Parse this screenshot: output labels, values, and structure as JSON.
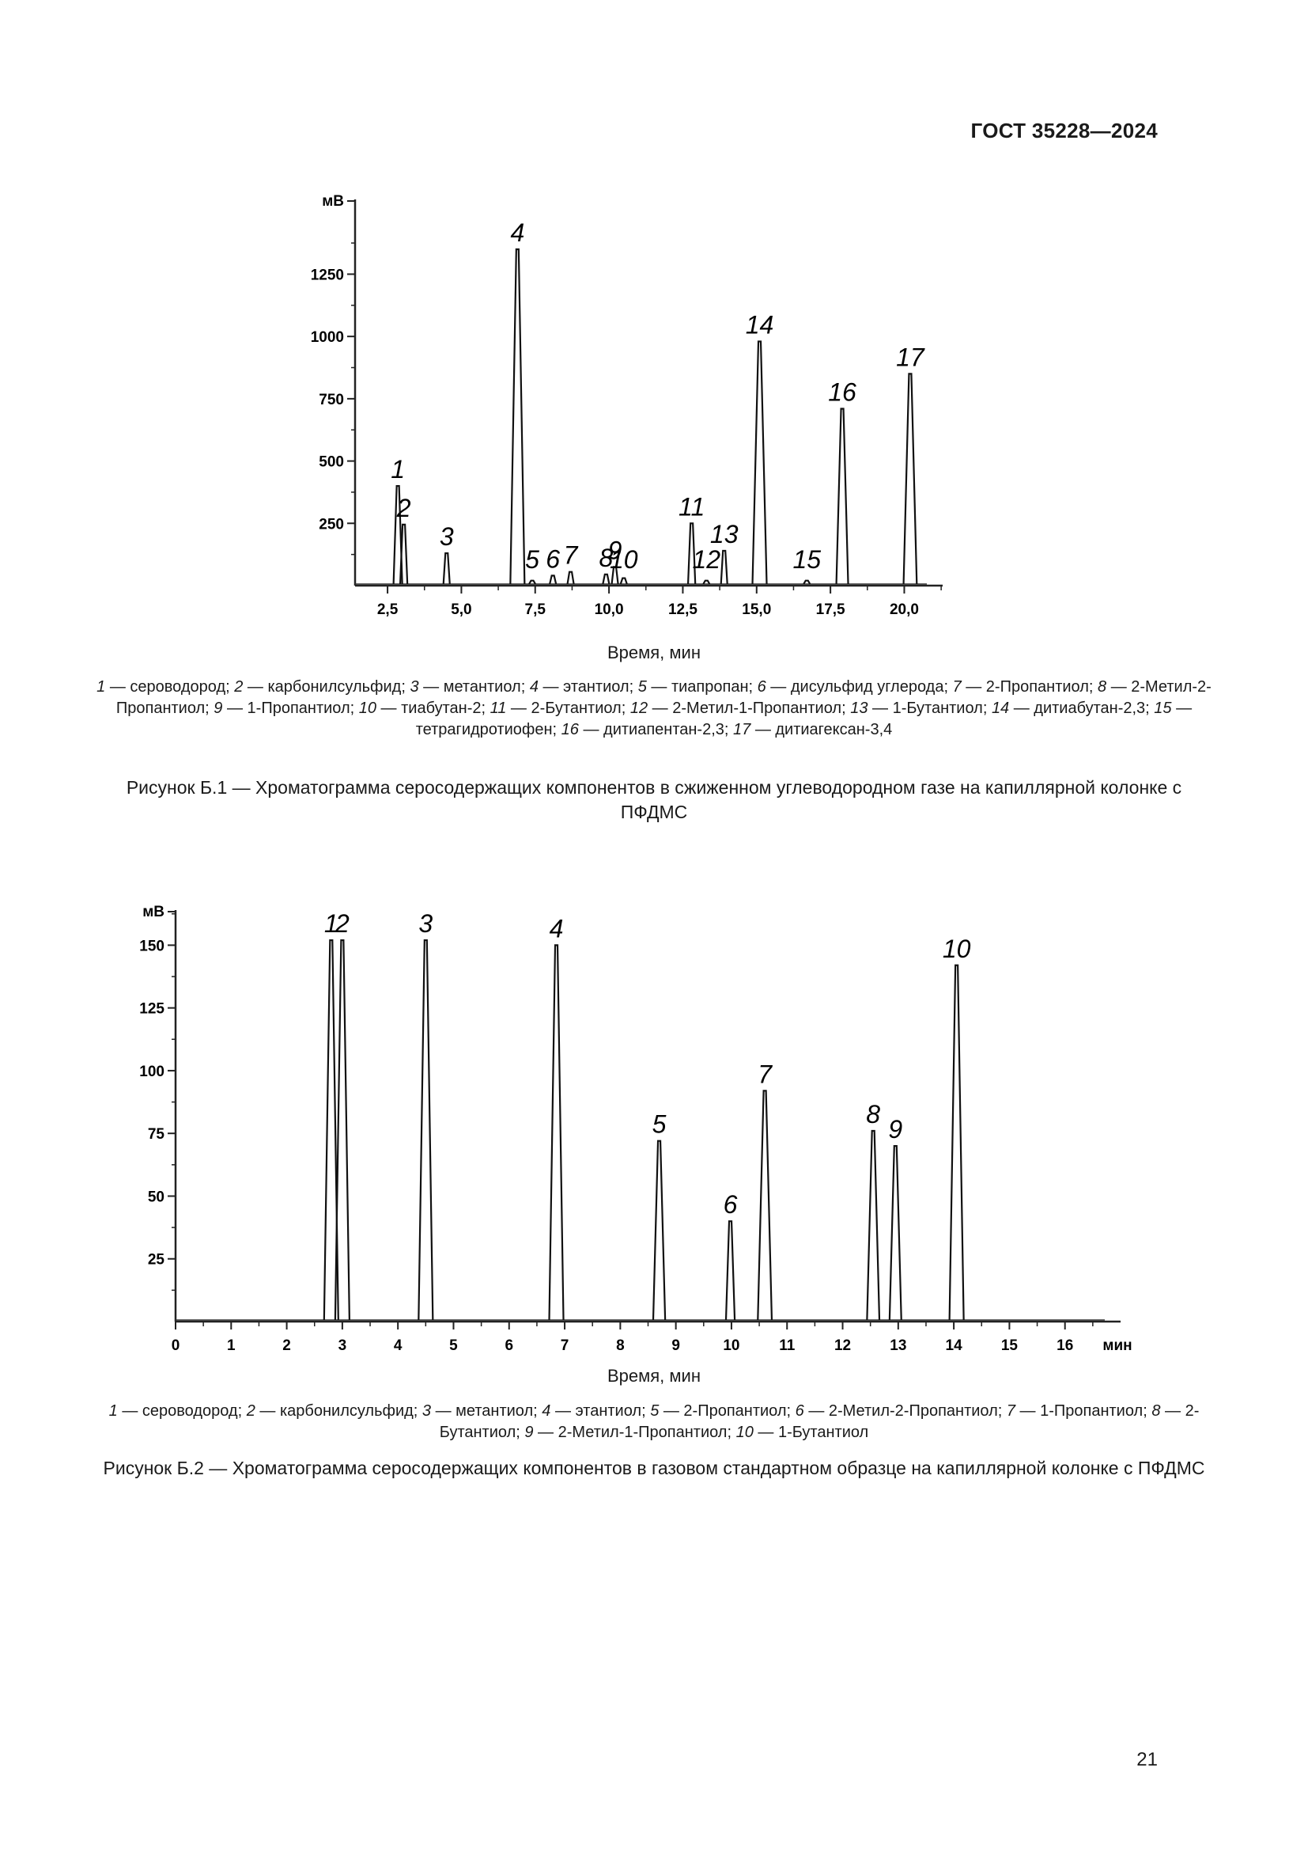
{
  "header": "ГОСТ 35228—2024",
  "page_number": "21",
  "figure1": {
    "xlabel": "Время, мин",
    "legend": [
      {
        "n": "1",
        "t": " — сероводород; "
      },
      {
        "n": "2",
        "t": " — карбонилсульфид; "
      },
      {
        "n": "3",
        "t": " — метантиол; "
      },
      {
        "n": "4",
        "t": " — этантиол; "
      },
      {
        "n": "5",
        "t": " — тиапропан; "
      },
      {
        "n": "6",
        "t": " — дисульфид углерода; "
      },
      {
        "n": "7",
        "t": " — 2-Пропантиол; "
      },
      {
        "n": "8",
        "t": " — 2-Метил-2-Пропантиол; "
      },
      {
        "n": "9",
        "t": " — 1-Пропантиол; "
      },
      {
        "n": "10",
        "t": " — тиабутан-2; "
      },
      {
        "n": "11",
        "t": " — 2-Бутантиол; "
      },
      {
        "n": "12",
        "t": " — 2-Метил-1-Пропантиол; "
      },
      {
        "n": "13",
        "t": " — 1-Бутантиол; "
      },
      {
        "n": "14",
        "t": " — дитиабутан-2,3; "
      },
      {
        "n": "15",
        "t": " — тетрагидротиофен; "
      },
      {
        "n": "16",
        "t": " — дитиапентан-2,3; "
      },
      {
        "n": "17",
        "t": " — дитиагексан-3,4"
      }
    ],
    "caption": "Рисунок Б.1 — Хроматограмма серосодержащих компонентов в сжиженном углеводородном газе на капиллярной колонке с ПФДМС"
  },
  "figure2": {
    "xlabel": "Время, мин",
    "legend": [
      {
        "n": "1",
        "t": " — сероводород; "
      },
      {
        "n": "2",
        "t": " — карбонилсульфид; "
      },
      {
        "n": "3",
        "t": " — метантиол; "
      },
      {
        "n": "4",
        "t": " — этантиол; "
      },
      {
        "n": "5",
        "t": " — 2-Пропантиол; "
      },
      {
        "n": "6",
        "t": " — 2-Метил-2-Пропантиол; "
      },
      {
        "n": "7",
        "t": " — 1-Пропантиол; "
      },
      {
        "n": "8",
        "t": " — 2-Бутантиол; "
      },
      {
        "n": "9",
        "t": " — 2-Метил-1-Пропантиол; "
      },
      {
        "n": "10",
        "t": " — 1-Бутантиол"
      }
    ],
    "caption": "Рисунок Б.2 — Хроматограмма серосодержащих компонентов в газовом стандартном образце на капиллярной колонке с ПФДМС"
  },
  "chart_data": [
    {
      "type": "line",
      "ylabel": "мВ",
      "xlabel": "Время, мин",
      "xlim": [
        1.4,
        21.3
      ],
      "ylim": [
        0,
        1550
      ],
      "yticks": [
        250,
        500,
        750,
        1000,
        1250
      ],
      "ytick_labels": [
        "250",
        "500",
        "750",
        "1000",
        "1250"
      ],
      "xticks": [
        2.5,
        5.0,
        7.5,
        10.0,
        12.5,
        15.0,
        17.5,
        20.0
      ],
      "xtick_labels": [
        "2,5",
        "5,0",
        "7,5",
        "10,0",
        "12,5",
        "15,0",
        "17,5",
        "20,0"
      ],
      "peaks": [
        {
          "label": "1",
          "x": 2.85,
          "y": 400
        },
        {
          "label": "2",
          "x": 3.05,
          "y": 245
        },
        {
          "label": "3",
          "x": 4.5,
          "y": 130
        },
        {
          "label": "4",
          "x": 6.9,
          "y": 1350
        },
        {
          "label": "5",
          "x": 7.4,
          "y": 20
        },
        {
          "label": "6",
          "x": 8.1,
          "y": 40
        },
        {
          "label": "7",
          "x": 8.7,
          "y": 55
        },
        {
          "label": "8",
          "x": 9.9,
          "y": 45
        },
        {
          "label": "9",
          "x": 10.2,
          "y": 75
        },
        {
          "label": "10",
          "x": 10.5,
          "y": 30
        },
        {
          "label": "11",
          "x": 12.8,
          "y": 250
        },
        {
          "label": "12",
          "x": 13.3,
          "y": 20
        },
        {
          "label": "13",
          "x": 13.9,
          "y": 140
        },
        {
          "label": "14",
          "x": 15.1,
          "y": 980
        },
        {
          "label": "15",
          "x": 16.7,
          "y": 20
        },
        {
          "label": "16",
          "x": 17.9,
          "y": 710
        },
        {
          "label": "17",
          "x": 20.2,
          "y": 850
        }
      ]
    },
    {
      "type": "line",
      "ylabel": "мВ",
      "xlabel": "Время, мин",
      "xlim": [
        0,
        17
      ],
      "ylim": [
        0,
        164
      ],
      "yticks": [
        25,
        50,
        75,
        100,
        125,
        150
      ],
      "ytick_labels": [
        "25",
        "50",
        "75",
        "100",
        "125",
        "150"
      ],
      "xticks": [
        0,
        1,
        2,
        3,
        4,
        5,
        6,
        7,
        8,
        9,
        10,
        11,
        12,
        13,
        14,
        15,
        16
      ],
      "xtick_labels": [
        "0",
        "1",
        "2",
        "3",
        "4",
        "5",
        "6",
        "7",
        "8",
        "9",
        "10",
        "11",
        "12",
        "13",
        "14",
        "15",
        "16"
      ],
      "x_unit_label": "мин",
      "peaks": [
        {
          "label": "1",
          "x": 2.8,
          "y": 152
        },
        {
          "label": "2",
          "x": 3.0,
          "y": 152
        },
        {
          "label": "3",
          "x": 4.5,
          "y": 152
        },
        {
          "label": "4",
          "x": 6.85,
          "y": 150
        },
        {
          "label": "5",
          "x": 8.7,
          "y": 72
        },
        {
          "label": "6",
          "x": 9.98,
          "y": 40
        },
        {
          "label": "7",
          "x": 10.6,
          "y": 92
        },
        {
          "label": "8",
          "x": 12.55,
          "y": 76
        },
        {
          "label": "9",
          "x": 12.95,
          "y": 70
        },
        {
          "label": "10",
          "x": 14.05,
          "y": 142
        }
      ]
    }
  ]
}
